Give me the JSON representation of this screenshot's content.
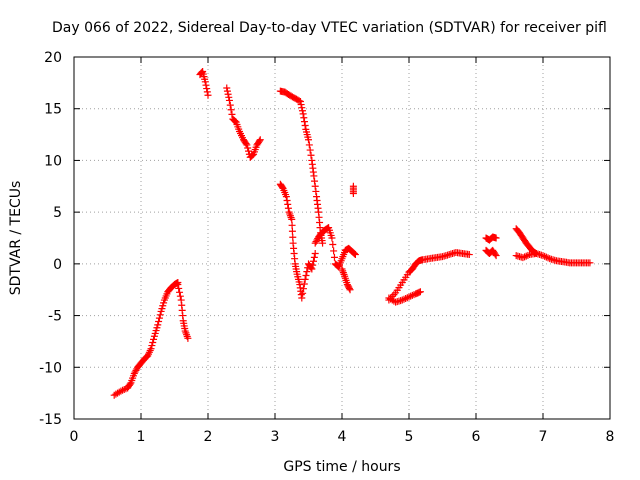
{
  "chart_data": {
    "type": "scatter",
    "title": "Day 066 of 2022, Sidereal Day-to-day VTEC variation (SDTVAR) for receiver pifl",
    "xlabel": "GPS time / hours",
    "ylabel": "SDTVAR / TECUs",
    "xlim": [
      0,
      8
    ],
    "ylim": [
      -15,
      20
    ],
    "xticks": [
      0,
      1,
      2,
      3,
      4,
      5,
      6,
      7,
      8
    ],
    "yticks": [
      -15,
      -10,
      -5,
      0,
      5,
      10,
      15,
      20
    ],
    "grid": true,
    "marker": "+",
    "color": "#ff0000",
    "series": [
      {
        "name": "seg1",
        "x": [
          0.6,
          0.7,
          0.8,
          0.85,
          0.9,
          0.95,
          1.0,
          1.05,
          1.1,
          1.15,
          1.2,
          1.25,
          1.3,
          1.35,
          1.4,
          1.45,
          1.5,
          1.55
        ],
        "y": [
          -12.7,
          -12.3,
          -12.0,
          -11.5,
          -10.6,
          -10.0,
          -9.6,
          -9.2,
          -8.9,
          -8.2,
          -7.0,
          -5.9,
          -4.6,
          -3.5,
          -2.7,
          -2.3,
          -2.0,
          -1.8
        ]
      },
      {
        "name": "seg2",
        "x": [
          1.55,
          1.6,
          1.63,
          1.66,
          1.7
        ],
        "y": [
          -2.0,
          -3.5,
          -5.5,
          -6.5,
          -7.2
        ]
      },
      {
        "name": "seg3",
        "x": [
          1.88,
          1.92,
          1.96,
          2.0
        ],
        "y": [
          18.3,
          18.6,
          17.6,
          16.3
        ]
      },
      {
        "name": "seg4",
        "x": [
          2.28,
          2.32,
          2.37,
          2.42,
          2.47,
          2.53,
          2.58,
          2.63,
          2.68,
          2.73,
          2.78
        ],
        "y": [
          17.0,
          15.8,
          14.0,
          13.7,
          12.8,
          12.0,
          11.5,
          10.3,
          10.6,
          11.5,
          12.0
        ]
      },
      {
        "name": "seg5",
        "x": [
          3.08,
          3.15,
          3.22,
          3.3,
          3.38,
          3.42,
          3.46,
          3.5,
          3.55,
          3.58,
          3.62,
          3.65,
          3.68,
          3.71
        ],
        "y": [
          16.7,
          16.6,
          16.3,
          16.0,
          15.7,
          14.5,
          13.0,
          12.0,
          10.0,
          8.5,
          6.5,
          5.0,
          3.0,
          2.0
        ]
      },
      {
        "name": "seg6",
        "x": [
          3.08,
          3.12,
          3.17,
          3.21,
          3.25,
          3.27,
          3.3,
          3.33,
          3.37,
          3.4,
          3.45,
          3.5,
          3.55,
          3.6
        ],
        "y": [
          7.7,
          7.3,
          6.5,
          5.0,
          4.3,
          2.0,
          0.0,
          -1.0,
          -2.0,
          -3.3,
          -1.5,
          0.0,
          -0.5,
          1.0
        ]
      },
      {
        "name": "seg7",
        "x": [
          3.6,
          3.65,
          3.7,
          3.75,
          3.8,
          3.85,
          3.9,
          3.95,
          4.0,
          4.05,
          4.1,
          4.15,
          4.2
        ],
        "y": [
          2.0,
          2.6,
          3.0,
          3.3,
          3.5,
          2.5,
          0.0,
          -0.3,
          0.5,
          1.3,
          1.5,
          1.2,
          0.9
        ]
      },
      {
        "name": "seg8",
        "x": [
          4.0,
          4.04,
          4.08,
          4.12
        ],
        "y": [
          -0.5,
          -1.2,
          -2.0,
          -2.5
        ]
      },
      {
        "name": "seg9",
        "x": [
          4.17,
          4.17
        ],
        "y": [
          7.5,
          6.8
        ]
      },
      {
        "name": "seg10",
        "x": [
          4.7,
          4.8,
          4.9,
          5.0,
          5.05,
          5.1,
          5.15,
          5.2,
          5.3,
          5.4,
          5.5,
          5.6,
          5.7,
          5.8,
          5.9
        ],
        "y": [
          -3.5,
          -2.8,
          -1.8,
          -0.8,
          -0.5,
          0.0,
          0.3,
          0.4,
          0.5,
          0.6,
          0.7,
          0.9,
          1.1,
          1.0,
          0.9
        ]
      },
      {
        "name": "seg11",
        "x": [
          4.7,
          4.8,
          4.9,
          5.0,
          5.1,
          5.17
        ],
        "y": [
          -3.3,
          -3.7,
          -3.5,
          -3.2,
          -2.9,
          -2.7
        ]
      },
      {
        "name": "seg12",
        "x": [
          6.15,
          6.2,
          6.25,
          6.3
        ],
        "y": [
          2.5,
          2.3,
          2.6,
          2.5
        ]
      },
      {
        "name": "seg13",
        "x": [
          6.15,
          6.2,
          6.25,
          6.3
        ],
        "y": [
          1.3,
          1.0,
          1.3,
          0.8
        ]
      },
      {
        "name": "seg14",
        "x": [
          6.6,
          6.65,
          6.7,
          6.75,
          6.8,
          6.85,
          6.9
        ],
        "y": [
          3.4,
          3.0,
          2.5,
          2.0,
          1.6,
          1.2,
          1.0
        ]
      },
      {
        "name": "seg15",
        "x": [
          6.6,
          6.7,
          6.8,
          6.9,
          7.0,
          7.1,
          7.2,
          7.3,
          7.4,
          7.5,
          7.6,
          7.7
        ],
        "y": [
          0.8,
          0.6,
          0.9,
          1.0,
          0.8,
          0.5,
          0.3,
          0.2,
          0.1,
          0.1,
          0.1,
          0.1
        ]
      }
    ]
  }
}
